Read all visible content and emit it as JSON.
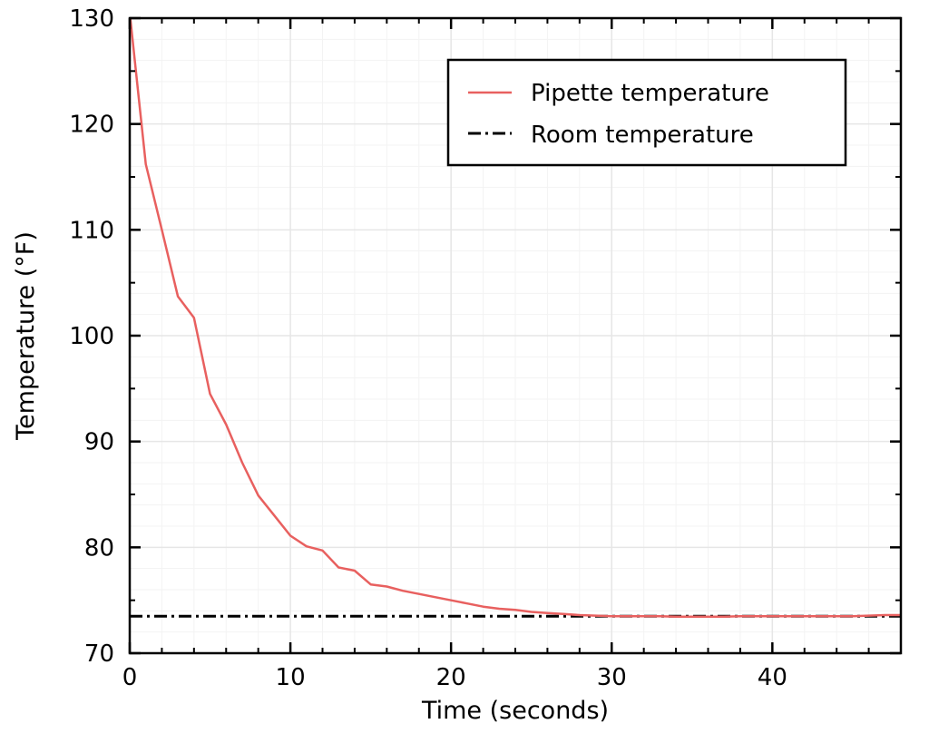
{
  "chart_data": {
    "type": "line",
    "xlabel": "Time (seconds)",
    "ylabel": "Temperature (°F)",
    "xlim": [
      0,
      48
    ],
    "ylim": [
      70,
      130
    ],
    "xticks": [
      "0",
      "10",
      "20",
      "30",
      "40"
    ],
    "yticks": [
      "70",
      "80",
      "90",
      "100",
      "110",
      "120",
      "130"
    ],
    "grid": true,
    "legend_position": "top-right",
    "series": [
      {
        "name": "Pipette temperature",
        "color": "#e8605f",
        "style": "solid",
        "x": [
          0,
          1,
          2,
          3,
          4,
          5,
          6,
          7,
          8,
          9,
          10,
          11,
          12,
          13,
          14,
          15,
          16,
          17,
          18,
          19,
          20,
          21,
          22,
          23,
          24,
          25,
          26,
          27,
          28,
          29,
          30,
          31,
          32,
          33,
          34,
          35,
          36,
          37,
          38,
          39,
          40,
          41,
          42,
          43,
          44,
          45,
          46,
          47,
          48
        ],
        "y": [
          130.5,
          116.2,
          110.0,
          103.7,
          101.7,
          94.5,
          91.6,
          88.0,
          84.9,
          83.0,
          81.1,
          80.1,
          79.7,
          78.1,
          77.8,
          76.5,
          76.3,
          75.9,
          75.6,
          75.3,
          75.0,
          74.7,
          74.4,
          74.2,
          74.1,
          73.9,
          73.8,
          73.7,
          73.6,
          73.55,
          73.5,
          73.5,
          73.5,
          73.5,
          73.45,
          73.45,
          73.45,
          73.45,
          73.5,
          73.5,
          73.5,
          73.5,
          73.5,
          73.5,
          73.5,
          73.5,
          73.55,
          73.6,
          73.6
        ]
      },
      {
        "name": "Room temperature",
        "color": "#000000",
        "style": "dash-dot",
        "x": [
          0,
          48
        ],
        "y": [
          73.5,
          73.5
        ]
      }
    ]
  }
}
